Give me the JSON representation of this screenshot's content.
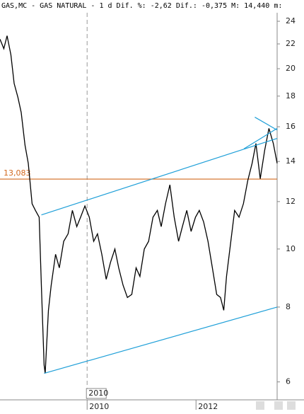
{
  "chart_data": {
    "type": "line",
    "title": "GAS,MC - GAS NATURAL -  1 d Dif. %: -2,62 Dif.: -0,375 M: 14,440 m:",
    "x": [
      2008.4,
      2008.47,
      2008.53,
      2008.6,
      2008.66,
      2008.73,
      2008.79,
      2008.86,
      2008.92,
      2008.99,
      2009.05,
      2009.12,
      2009.16,
      2009.21,
      2009.23,
      2009.29,
      2009.34,
      2009.42,
      2009.49,
      2009.57,
      2009.65,
      2009.73,
      2009.81,
      2009.88,
      2009.96,
      2010.04,
      2010.12,
      2010.19,
      2010.27,
      2010.35,
      2010.43,
      2010.51,
      2010.58,
      2010.66,
      2010.74,
      2010.82,
      2010.9,
      2010.97,
      2011.05,
      2011.13,
      2011.21,
      2011.29,
      2011.36,
      2011.44,
      2011.52,
      2011.6,
      2011.68,
      2011.75,
      2011.83,
      2011.91,
      2011.99,
      2012.06,
      2012.14,
      2012.22,
      2012.3,
      2012.38,
      2012.45,
      2012.51,
      2012.56,
      2012.64,
      2012.71,
      2012.79,
      2012.87,
      2012.95,
      2013.03,
      2013.1,
      2013.18,
      2013.26,
      2013.34,
      2013.42,
      2013.49
    ],
    "values": [
      22.4,
      21.6,
      22.7,
      21.1,
      18.9,
      17.9,
      16.9,
      14.9,
      13.9,
      11.9,
      11.6,
      11.3,
      8.7,
      6.4,
      6.2,
      7.9,
      8.7,
      9.8,
      9.3,
      10.3,
      10.6,
      11.6,
      10.9,
      11.3,
      11.8,
      11.3,
      10.3,
      10.6,
      9.8,
      8.9,
      9.5,
      10.0,
      9.3,
      8.7,
      8.3,
      8.4,
      9.3,
      9.0,
      10.0,
      10.3,
      11.3,
      11.6,
      10.9,
      11.9,
      12.8,
      11.3,
      10.3,
      10.9,
      11.6,
      10.7,
      11.3,
      11.6,
      11.1,
      10.3,
      9.3,
      8.4,
      8.3,
      7.9,
      9.0,
      10.3,
      11.6,
      11.3,
      11.9,
      13.0,
      13.9,
      15.0,
      13.1,
      14.6,
      15.9,
      15.0,
      13.9
    ],
    "color": "#000000",
    "xlim": [
      2008.4,
      2013.49
    ],
    "xticks": [
      2010,
      2012
    ],
    "ylim": [
      5.6,
      24.8
    ],
    "log_y": true,
    "yticks": [
      6,
      8,
      10,
      12,
      14,
      16,
      18,
      20,
      22,
      24
    ],
    "crosshair_x": 2010,
    "hline": {
      "value": 13.083,
      "label": "13,083",
      "color": "#d2691e"
    },
    "trendlines": [
      {
        "color": "#1e9fd8",
        "x": [
          2009.16,
          2013.49
        ],
        "y": [
          11.4,
          15.3
        ]
      },
      {
        "color": "#1e9fd8",
        "x": [
          2009.21,
          2013.49
        ],
        "y": [
          6.2,
          8.0
        ]
      },
      {
        "color": "#1e9fd8",
        "x": [
          2012.88,
          2013.49
        ],
        "y": [
          14.7,
          15.9
        ]
      },
      {
        "color": "#1e9fd8",
        "x": [
          2013.08,
          2013.49
        ],
        "y": [
          16.6,
          15.8
        ]
      }
    ]
  }
}
